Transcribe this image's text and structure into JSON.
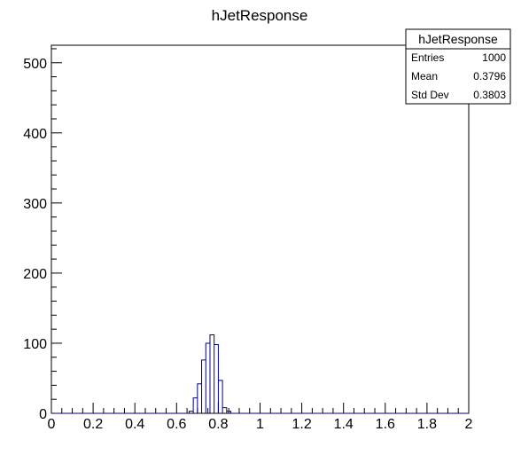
{
  "chart_data": {
    "type": "bar",
    "title": "hJetResponse",
    "xlabel": "",
    "ylabel": "",
    "xlim": [
      0,
      2
    ],
    "ylim": [
      0,
      525
    ],
    "x_ticks": [
      "0",
      "0.2",
      "0.4",
      "0.6",
      "0.8",
      "1",
      "1.2",
      "1.4",
      "1.6",
      "1.8",
      "2"
    ],
    "y_ticks": [
      "0",
      "100",
      "200",
      "300",
      "400",
      "500"
    ],
    "bin_width": 0.02,
    "bins": [
      {
        "low": 0.66,
        "count": 3
      },
      {
        "low": 0.68,
        "count": 22
      },
      {
        "low": 0.7,
        "count": 42
      },
      {
        "low": 0.72,
        "count": 76
      },
      {
        "low": 0.74,
        "count": 100
      },
      {
        "low": 0.76,
        "count": 112
      },
      {
        "low": 0.78,
        "count": 98
      },
      {
        "low": 0.8,
        "count": 47
      },
      {
        "low": 0.82,
        "count": 8
      },
      {
        "low": 0.84,
        "count": 3
      }
    ],
    "line_color": "#000080",
    "grid": false,
    "legend": "none",
    "stats_box": {
      "position": "top-right",
      "name": "hJetResponse",
      "rows": [
        {
          "label": "Entries",
          "value": "1000"
        },
        {
          "label": "Mean",
          "value": "0.3796"
        },
        {
          "label": "Std Dev",
          "value": "0.3803"
        }
      ]
    }
  }
}
